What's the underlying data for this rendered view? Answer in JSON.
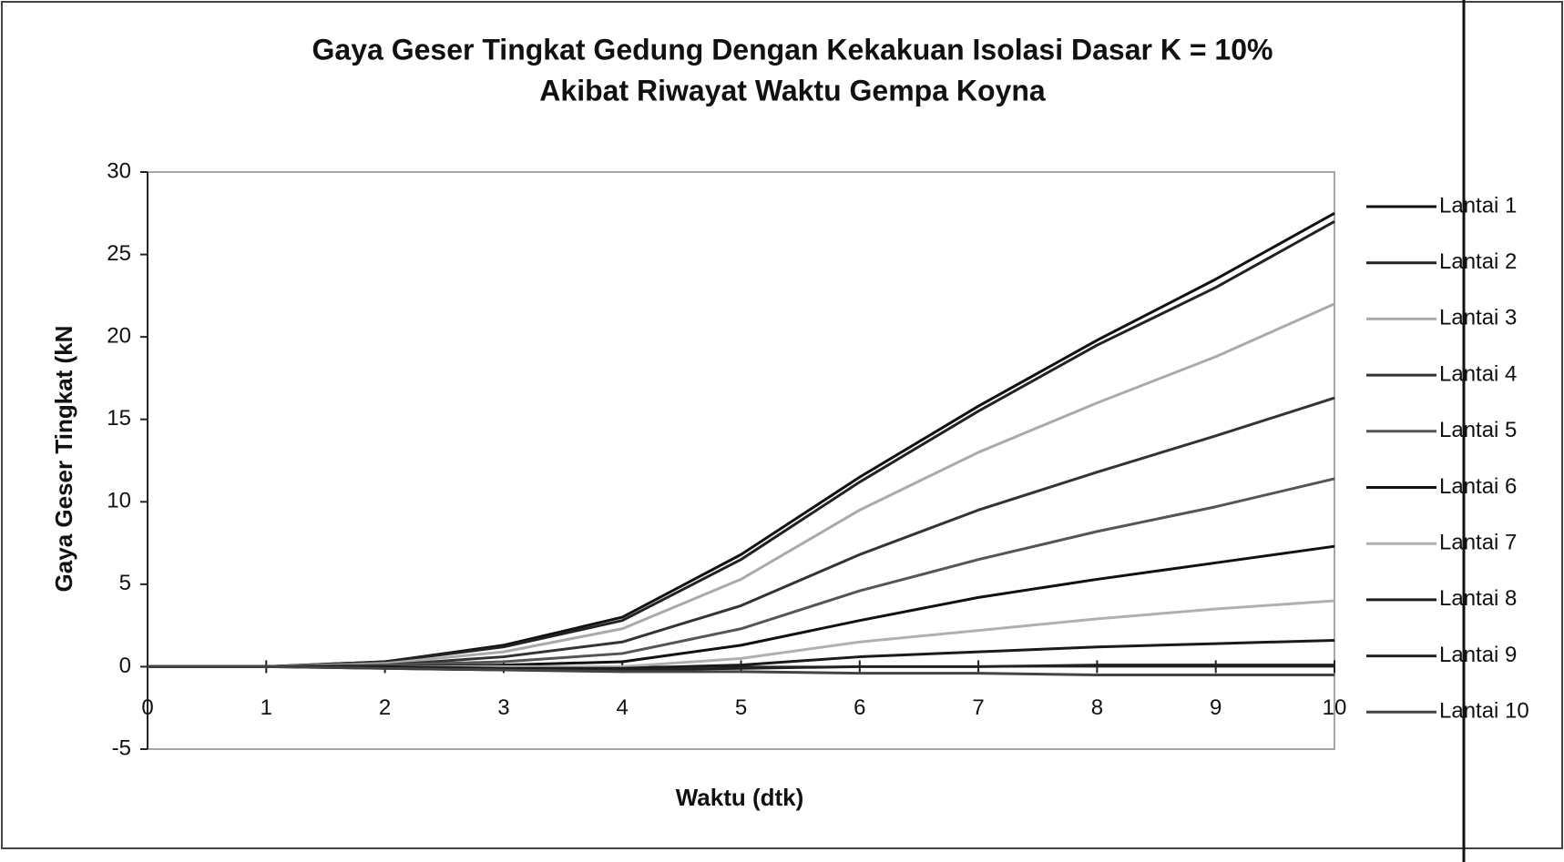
{
  "chart_data": {
    "type": "line",
    "title": [
      "Gaya Geser Tingkat Gedung Dengan Kekakuan Isolasi Dasar K = 10%",
      "Akibat Riwayat Waktu Gempa Koyna"
    ],
    "x_label": "Waktu (dtk)",
    "y_label": "Gaya Geser Tingkat (kN",
    "x": [
      0,
      1,
      2,
      3,
      4,
      5,
      6,
      7,
      8,
      9,
      10
    ],
    "xlim": [
      0,
      10
    ],
    "xticks": [
      0,
      1,
      2,
      3,
      4,
      5,
      6,
      7,
      8,
      9,
      10
    ],
    "ylim": [
      -5,
      30
    ],
    "yticks": [
      -5,
      0,
      5,
      10,
      15,
      20,
      25,
      30
    ],
    "legend": "right",
    "series": [
      {
        "name": "Lantai 1",
        "color": "#111111",
        "values": [
          0,
          0,
          0.3,
          1.3,
          3,
          6.8,
          11.5,
          15.8,
          19.8,
          23.5,
          27.5
        ]
      },
      {
        "name": "Lantai 2",
        "color": "#222222",
        "values": [
          0,
          0,
          0.3,
          1.2,
          2.8,
          6.5,
          11.2,
          15.5,
          19.5,
          23,
          27
        ]
      },
      {
        "name": "Lantai 3",
        "color": "#aaaaaa",
        "values": [
          0,
          0,
          0.2,
          0.9,
          2.3,
          5.3,
          9.5,
          13,
          16,
          18.8,
          22
        ]
      },
      {
        "name": "Lantai 4",
        "color": "#333333",
        "values": [
          0,
          0,
          0.1,
          0.6,
          1.5,
          3.7,
          6.8,
          9.5,
          11.8,
          14,
          16.3
        ]
      },
      {
        "name": "Lantai 5",
        "color": "#555555",
        "values": [
          0,
          0,
          0.1,
          0.3,
          0.8,
          2.3,
          4.6,
          6.5,
          8.2,
          9.7,
          11.4
        ]
      },
      {
        "name": "Lantai 6",
        "color": "#111111",
        "values": [
          0,
          0,
          0,
          0.1,
          0.3,
          1.3,
          2.8,
          4.2,
          5.3,
          6.3,
          7.3
        ]
      },
      {
        "name": "Lantai 7",
        "color": "#b0b0b0",
        "values": [
          0,
          0,
          0,
          0,
          0,
          0.5,
          1.5,
          2.2,
          2.9,
          3.5,
          4
        ]
      },
      {
        "name": "Lantai 8",
        "color": "#1a1a1a",
        "values": [
          0,
          0,
          0,
          -0.1,
          -0.1,
          0.1,
          0.6,
          0.9,
          1.2,
          1.4,
          1.6
        ]
      },
      {
        "name": "Lantai 9",
        "color": "#222222",
        "values": [
          0,
          0,
          -0.1,
          -0.2,
          -0.2,
          -0.1,
          0,
          0,
          0.1,
          0.1,
          0.1
        ]
      },
      {
        "name": "Lantai 10",
        "color": "#444444",
        "values": [
          0,
          0,
          -0.1,
          -0.2,
          -0.3,
          -0.3,
          -0.4,
          -0.4,
          -0.5,
          -0.5,
          -0.5
        ]
      }
    ]
  }
}
